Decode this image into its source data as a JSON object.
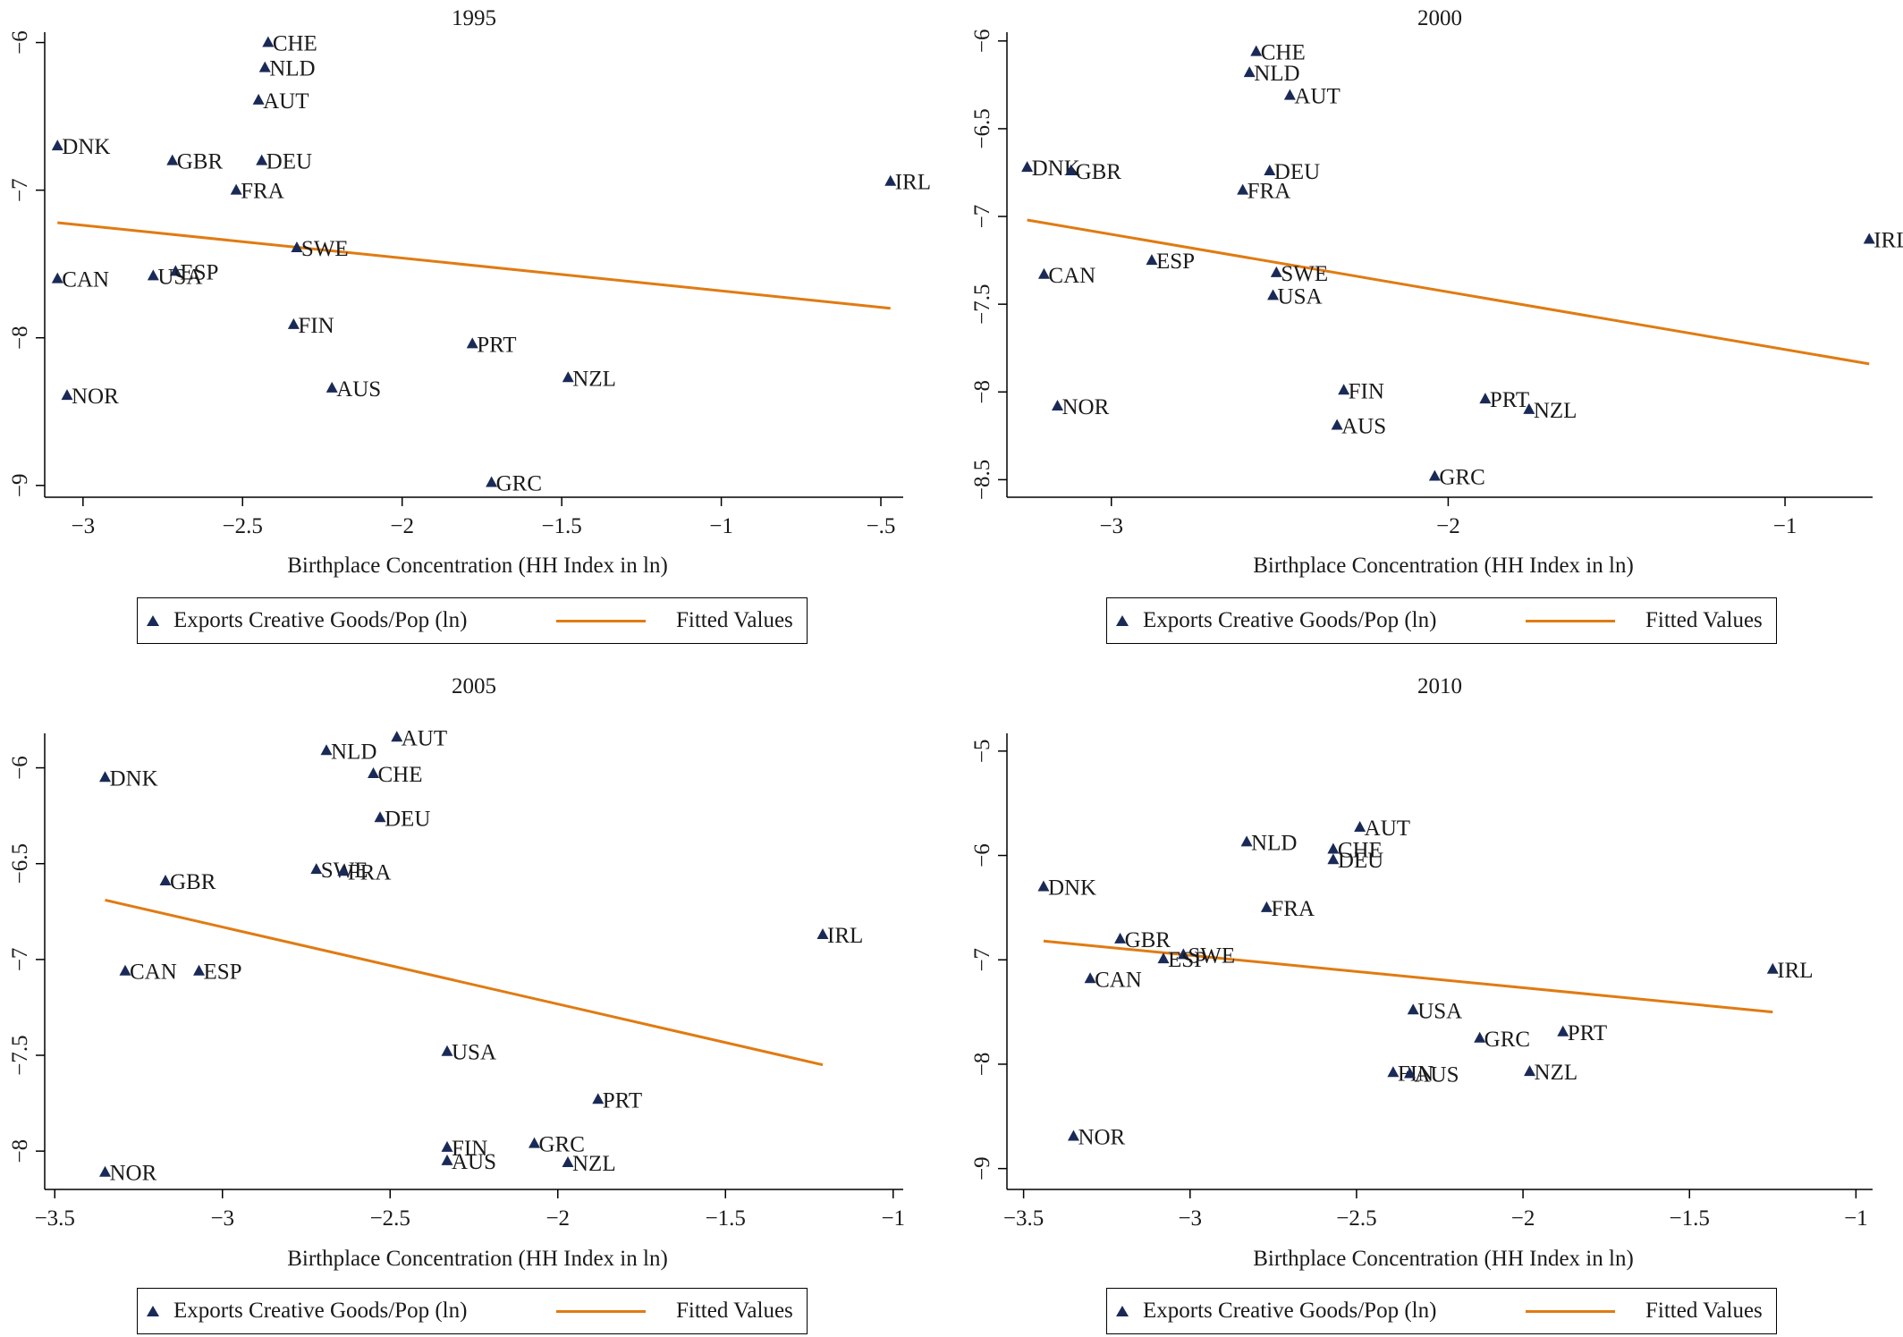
{
  "colors": {
    "marker": "#1a2a57",
    "fit": "#e07b12",
    "text": "#1a1a1a",
    "axis": "#000000"
  },
  "legend": {
    "marker_label": "Exports Creative Goods/Pop (ln)",
    "fit_label": "Fitted Values"
  },
  "chart_data": [
    {
      "type": "scatter",
      "title": "1995",
      "xlabel": "Birthplace Concentration (HH Index in ln)",
      "ylabel": "",
      "xlim": [
        -3.12,
        -0.43
      ],
      "ylim": [
        -9.08,
        -5.93
      ],
      "xticks": [
        -3,
        -2.5,
        -2,
        -1.5,
        -1,
        -0.5
      ],
      "xtick_labels": [
        "−3",
        "−2.5",
        "−2",
        "−1.5",
        "−1",
        "−.5"
      ],
      "yticks": [
        -6,
        -7,
        -8,
        -9
      ],
      "ytick_labels": [
        "−6",
        "−7",
        "−8",
        "−9"
      ],
      "points": [
        {
          "label": "CHE",
          "x": -2.42,
          "y": -6.0
        },
        {
          "label": "NLD",
          "x": -2.43,
          "y": -6.17
        },
        {
          "label": "AUT",
          "x": -2.45,
          "y": -6.39
        },
        {
          "label": "DNK",
          "x": -3.08,
          "y": -6.7
        },
        {
          "label": "GBR",
          "x": -2.72,
          "y": -6.8
        },
        {
          "label": "DEU",
          "x": -2.44,
          "y": -6.8
        },
        {
          "label": "FRA",
          "x": -2.52,
          "y": -7.0
        },
        {
          "label": "IRL",
          "x": -0.47,
          "y": -6.94
        },
        {
          "label": "SWE",
          "x": -2.33,
          "y": -7.39
        },
        {
          "label": "ESP",
          "x": -2.71,
          "y": -7.55
        },
        {
          "label": "USA",
          "x": -2.78,
          "y": -7.58
        },
        {
          "label": "CAN",
          "x": -3.08,
          "y": -7.6
        },
        {
          "label": "FIN",
          "x": -2.34,
          "y": -7.91
        },
        {
          "label": "PRT",
          "x": -1.78,
          "y": -8.04
        },
        {
          "label": "NZL",
          "x": -1.48,
          "y": -8.27
        },
        {
          "label": "AUS",
          "x": -2.22,
          "y": -8.34
        },
        {
          "label": "NOR",
          "x": -3.05,
          "y": -8.39
        },
        {
          "label": "GRC",
          "x": -1.72,
          "y": -8.98
        }
      ],
      "fit": {
        "x": [
          -3.08,
          -0.47
        ],
        "y": [
          -7.22,
          -7.8
        ]
      }
    },
    {
      "type": "scatter",
      "title": "2000",
      "xlabel": "Birthplace Concentration (HH Index in ln)",
      "ylabel": "",
      "xlim": [
        -3.31,
        -0.74
      ],
      "ylim": [
        -8.6,
        -5.95
      ],
      "xticks": [
        -3,
        -2,
        -1
      ],
      "xtick_labels": [
        "−3",
        "−2",
        "−1"
      ],
      "yticks": [
        -6,
        -6.5,
        -7,
        -7.5,
        -8,
        -8.5
      ],
      "ytick_labels": [
        "−6",
        "−6.5",
        "−7",
        "−7.5",
        "−8",
        "−8.5"
      ],
      "points": [
        {
          "label": "CHE",
          "x": -2.57,
          "y": -6.06
        },
        {
          "label": "NLD",
          "x": -2.59,
          "y": -6.18
        },
        {
          "label": "AUT",
          "x": -2.47,
          "y": -6.31
        },
        {
          "label": "DNK",
          "x": -3.25,
          "y": -6.72
        },
        {
          "label": "GBR",
          "x": -3.12,
          "y": -6.74
        },
        {
          "label": "DEU",
          "x": -2.53,
          "y": -6.74
        },
        {
          "label": "FRA",
          "x": -2.61,
          "y": -6.85
        },
        {
          "label": "IRL",
          "x": -0.75,
          "y": -7.13
        },
        {
          "label": "ESP",
          "x": -2.88,
          "y": -7.25
        },
        {
          "label": "CAN",
          "x": -3.2,
          "y": -7.33
        },
        {
          "label": "SWE",
          "x": -2.51,
          "y": -7.32
        },
        {
          "label": "USA",
          "x": -2.52,
          "y": -7.45
        },
        {
          "label": "FIN",
          "x": -2.31,
          "y": -7.99
        },
        {
          "label": "PRT",
          "x": -1.89,
          "y": -8.04
        },
        {
          "label": "NZL",
          "x": -1.76,
          "y": -8.1
        },
        {
          "label": "NOR",
          "x": -3.16,
          "y": -8.08
        },
        {
          "label": "AUS",
          "x": -2.33,
          "y": -8.19
        },
        {
          "label": "GRC",
          "x": -2.04,
          "y": -8.48
        }
      ],
      "fit": {
        "x": [
          -3.25,
          -0.75
        ],
        "y": [
          -7.02,
          -7.84
        ]
      }
    },
    {
      "type": "scatter",
      "title": "2005",
      "xlabel": "Birthplace Concentration (HH Index in ln)",
      "ylabel": "",
      "xlim": [
        -3.53,
        -0.97
      ],
      "ylim": [
        -8.2,
        -5.82
      ],
      "xticks": [
        -3.5,
        -3,
        -2.5,
        -2,
        -1.5,
        -1
      ],
      "xtick_labels": [
        "−3.5",
        "−3",
        "−2.5",
        "−2",
        "−1.5",
        "−1"
      ],
      "yticks": [
        -6,
        -6.5,
        -7,
        -7.5,
        -8
      ],
      "ytick_labels": [
        "−6",
        "−6.5",
        "−7",
        "−7.5",
        "−8"
      ],
      "points": [
        {
          "label": "AUT",
          "x": -2.48,
          "y": -5.84
        },
        {
          "label": "NLD",
          "x": -2.69,
          "y": -5.91
        },
        {
          "label": "CHE",
          "x": -2.55,
          "y": -6.03
        },
        {
          "label": "DNK",
          "x": -3.35,
          "y": -6.05
        },
        {
          "label": "DEU",
          "x": -2.53,
          "y": -6.26
        },
        {
          "label": "SWE",
          "x": -2.72,
          "y": -6.53
        },
        {
          "label": "FRA",
          "x": -2.64,
          "y": -6.54
        },
        {
          "label": "GBR",
          "x": -3.17,
          "y": -6.59
        },
        {
          "label": "IRL",
          "x": -1.21,
          "y": -6.87
        },
        {
          "label": "CAN",
          "x": -3.29,
          "y": -7.06
        },
        {
          "label": "ESP",
          "x": -3.07,
          "y": -7.06
        },
        {
          "label": "USA",
          "x": -2.33,
          "y": -7.48
        },
        {
          "label": "PRT",
          "x": -1.88,
          "y": -7.73
        },
        {
          "label": "GRC",
          "x": -2.07,
          "y": -7.96
        },
        {
          "label": "FIN",
          "x": -2.33,
          "y": -7.98
        },
        {
          "label": "AUS",
          "x": -2.33,
          "y": -8.05
        },
        {
          "label": "NZL",
          "x": -1.97,
          "y": -8.06
        },
        {
          "label": "NOR",
          "x": -3.35,
          "y": -8.11
        }
      ],
      "fit": {
        "x": [
          -3.35,
          -1.21
        ],
        "y": [
          -6.69,
          -7.55
        ]
      }
    },
    {
      "type": "scatter",
      "title": "2010",
      "xlabel": "Birthplace Concentration (HH Index in ln)",
      "ylabel": "",
      "xlim": [
        -3.55,
        -0.95
      ],
      "ylim": [
        -9.2,
        -4.83
      ],
      "xticks": [
        -3.5,
        -3,
        -2.5,
        -2,
        -1.5,
        -1
      ],
      "xtick_labels": [
        "−3.5",
        "−3",
        "−2.5",
        "−2",
        "−1.5",
        "−1"
      ],
      "yticks": [
        -5,
        -6,
        -7,
        -8,
        -9
      ],
      "ytick_labels": [
        "−5",
        "−6",
        "−7",
        "−8",
        "−9"
      ],
      "points": [
        {
          "label": "AUT",
          "x": -2.49,
          "y": -5.73
        },
        {
          "label": "NLD",
          "x": -2.83,
          "y": -5.87
        },
        {
          "label": "CHE",
          "x": -2.57,
          "y": -5.94
        },
        {
          "label": "DEU",
          "x": -2.57,
          "y": -6.04
        },
        {
          "label": "DNK",
          "x": -3.44,
          "y": -6.3
        },
        {
          "label": "FRA",
          "x": -2.77,
          "y": -6.5
        },
        {
          "label": "GBR",
          "x": -3.21,
          "y": -6.8
        },
        {
          "label": "SWE",
          "x": -3.02,
          "y": -6.95
        },
        {
          "label": "ESP",
          "x": -3.08,
          "y": -6.99
        },
        {
          "label": "IRL",
          "x": -1.25,
          "y": -7.09
        },
        {
          "label": "CAN",
          "x": -3.3,
          "y": -7.18
        },
        {
          "label": "USA",
          "x": -2.33,
          "y": -7.48
        },
        {
          "label": "PRT",
          "x": -1.88,
          "y": -7.69
        },
        {
          "label": "GRC",
          "x": -2.13,
          "y": -7.75
        },
        {
          "label": "FIN",
          "x": -2.39,
          "y": -8.08
        },
        {
          "label": "AUS",
          "x": -2.34,
          "y": -8.09
        },
        {
          "label": "NZL",
          "x": -1.98,
          "y": -8.07
        },
        {
          "label": "NOR",
          "x": -3.35,
          "y": -8.69
        }
      ],
      "fit": {
        "x": [
          -3.44,
          -1.25
        ],
        "y": [
          -6.82,
          -7.5
        ]
      }
    }
  ]
}
